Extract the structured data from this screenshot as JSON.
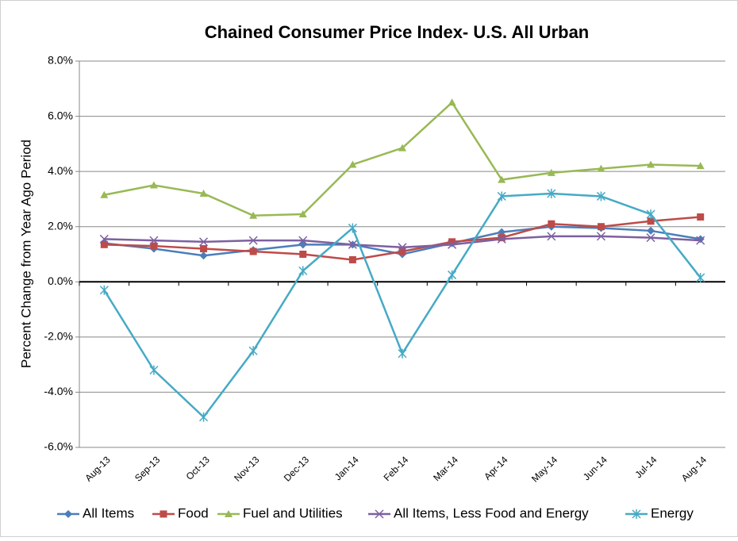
{
  "chart_data": {
    "type": "line",
    "title": "Chained Consumer Price Index- U.S. All Urban",
    "y_label": "Percent Change from Year Ago Period",
    "categories": [
      "Aug-13",
      "Sep-13",
      "Oct-13",
      "Nov-13",
      "Dec-13",
      "Jan-14",
      "Feb-14",
      "Mar-14",
      "Apr-14",
      "May-14",
      "Jun-14",
      "Jul-14",
      "Aug-14"
    ],
    "series": [
      {
        "name": "All Items",
        "color": "#4a7ebb",
        "marker": "diamond",
        "values": [
          1.4,
          1.2,
          0.95,
          1.15,
          1.35,
          1.35,
          1.0,
          1.4,
          1.8,
          2.0,
          1.95,
          1.85,
          1.55
        ]
      },
      {
        "name": "Food",
        "color": "#be4b48",
        "marker": "square",
        "values": [
          1.35,
          1.3,
          1.2,
          1.1,
          1.0,
          0.8,
          1.1,
          1.45,
          1.6,
          2.1,
          2.0,
          2.2,
          2.35
        ]
      },
      {
        "name": "Fuel and Utilities",
        "color": "#98b954",
        "marker": "triangle",
        "values": [
          3.15,
          3.5,
          3.2,
          2.4,
          2.45,
          4.25,
          4.85,
          6.5,
          3.7,
          3.95,
          4.1,
          4.25,
          4.2
        ]
      },
      {
        "name": "All Items, Less Food and Energy",
        "color": "#7d60a0",
        "marker": "x",
        "values": [
          1.55,
          1.5,
          1.45,
          1.5,
          1.5,
          1.35,
          1.25,
          1.35,
          1.55,
          1.65,
          1.65,
          1.6,
          1.5
        ]
      },
      {
        "name": "Energy",
        "color": "#46aac5",
        "marker": "star",
        "values": [
          -0.3,
          -3.2,
          -4.9,
          -2.5,
          0.4,
          1.95,
          -2.6,
          0.25,
          3.1,
          3.2,
          3.1,
          2.45,
          0.15
        ]
      }
    ],
    "ylim": [
      -6,
      8
    ],
    "yticks": [
      {
        "value": -6,
        "label": "-6.0%"
      },
      {
        "value": -4,
        "label": "-4.0%"
      },
      {
        "value": -2,
        "label": "-2.0%"
      },
      {
        "value": 0,
        "label": "0.0%"
      },
      {
        "value": 2,
        "label": "2.0%"
      },
      {
        "value": 4,
        "label": "4.0%"
      },
      {
        "value": 6,
        "label": "6.0%"
      },
      {
        "value": 8,
        "label": "8.0%"
      }
    ],
    "grid": true,
    "legend": "bottom"
  }
}
